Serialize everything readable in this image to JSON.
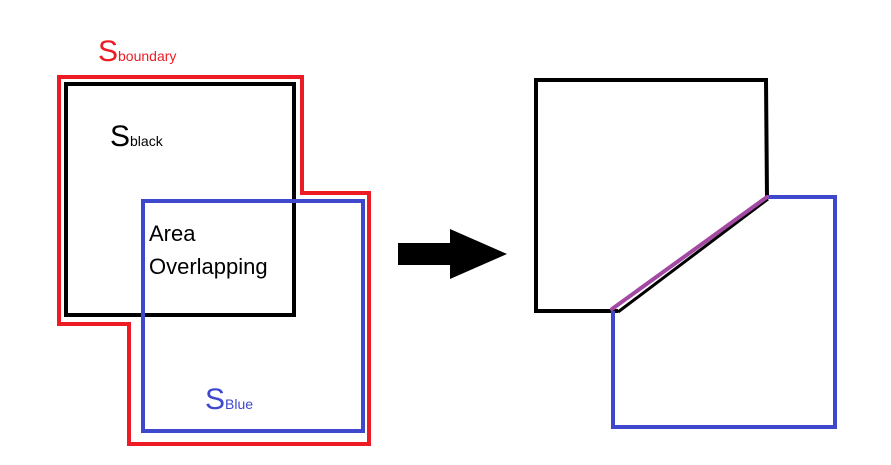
{
  "labels": {
    "boundary_main": "S",
    "boundary_sub": "boundary",
    "black_main": "S",
    "black_sub": "black",
    "blue_main": "S",
    "blue_sub": "Blue",
    "overlap_line1": "Area",
    "overlap_line2": "Overlapping"
  },
  "colors": {
    "boundary": "#ed1c24",
    "black_square": "#000000",
    "blue_square": "#3f48cc",
    "arrow": "#000000",
    "shared_edge": "#a349a4",
    "background": "#ffffff"
  },
  "icons": {
    "transition": "right-arrow-icon"
  }
}
